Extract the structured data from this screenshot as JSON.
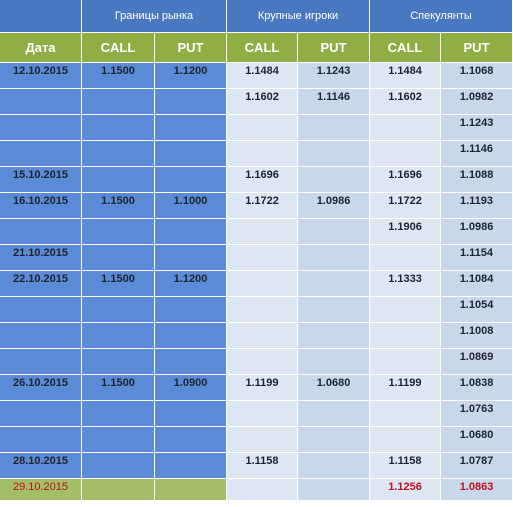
{
  "groups": {
    "market": "Границы рынка",
    "big": "Крупные игроки",
    "spec": "Спекулянты"
  },
  "columns": {
    "date": "Дата",
    "call": "CALL",
    "put": "PUT"
  },
  "rows": [
    [
      "12.10.2015",
      "1.1500",
      "1.1200",
      "1.1484",
      "1.1243",
      "1.1484",
      "1.1068"
    ],
    [
      "",
      "",
      "",
      "1.1602",
      "1.1146",
      "1.1602",
      "1.0982"
    ],
    [
      "",
      "",
      "",
      "",
      "",
      "",
      "1.1243"
    ],
    [
      "",
      "",
      "",
      "",
      "",
      "",
      "1.1146"
    ],
    [
      "15.10.2015",
      "",
      "",
      "1.1696",
      "",
      "1.1696",
      "1.1088"
    ],
    [
      "16.10.2015",
      "1.1500",
      "1.1000",
      "1.1722",
      "1.0986",
      "1.1722",
      "1.1193"
    ],
    [
      "",
      "",
      "",
      "",
      "",
      "1.1906",
      "1.0986"
    ],
    [
      "21.10.2015",
      "",
      "",
      "",
      "",
      "",
      "1.1154"
    ],
    [
      "22.10.2015",
      "1.1500",
      "1.1200",
      "",
      "",
      "1.1333",
      "1.1084"
    ],
    [
      "",
      "",
      "",
      "",
      "",
      "",
      "1.1054"
    ],
    [
      "",
      "",
      "",
      "",
      "",
      "",
      "1.1008"
    ],
    [
      "",
      "",
      "",
      "",
      "",
      "",
      "1.0869"
    ],
    [
      "26.10.2015",
      "1.1500",
      "1.0900",
      "1.1199",
      "1.0680",
      "1.1199",
      "1.0838"
    ],
    [
      "",
      "",
      "",
      "",
      "",
      "",
      "1.0763"
    ],
    [
      "",
      "",
      "",
      "",
      "",
      "",
      "1.0680"
    ],
    [
      "28.10.2015",
      "",
      "",
      "1.1158",
      "",
      "1.1158",
      "1.0787"
    ],
    [
      "29.10.2015",
      "",
      "",
      "",
      "",
      "1.1256",
      "1.0863"
    ]
  ]
}
